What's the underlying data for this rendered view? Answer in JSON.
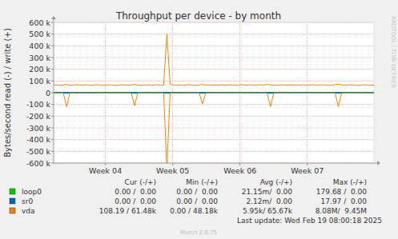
{
  "chart_data": {
    "type": "line",
    "title": "Throughput per device - by month",
    "y_label": "Bytes/second read (-) / write (+)",
    "side_text": "RRDTOOL / TOBI OETIKER",
    "last_update": "Last update: Wed Feb 19 08:00:18 2025",
    "footer": "Munin 2.0.75",
    "grid": true,
    "legend": "bottom",
    "legend_headers": [
      "Cur (-/+)",
      "Min (-/+)",
      "Avg (-/+)",
      "Max (-/+)"
    ],
    "xlim": [
      0,
      99
    ],
    "xticks": [
      {
        "value": 16,
        "label": "Week 04"
      },
      {
        "value": 36.8,
        "label": "Week 05"
      },
      {
        "value": 57.6,
        "label": "Week 06"
      },
      {
        "value": 78.4,
        "label": "Week 07"
      }
    ],
    "ylim": [
      -600000,
      600000
    ],
    "yticks": [
      {
        "value": 600000,
        "label": "600 k"
      },
      {
        "value": 500000,
        "label": "500 k"
      },
      {
        "value": 400000,
        "label": "400 k"
      },
      {
        "value": 300000,
        "label": "300 k"
      },
      {
        "value": 200000,
        "label": "200 k"
      },
      {
        "value": 100000,
        "label": "100 k"
      },
      0,
      {
        "value": -100000,
        "label": "-100 k"
      },
      {
        "value": -200000,
        "label": "-200 k"
      },
      {
        "value": -300000,
        "label": "-300 k"
      },
      {
        "value": -400000,
        "label": "-400 k"
      },
      {
        "value": -500000,
        "label": "-500 k"
      },
      {
        "value": -600000,
        "label": "-600 k"
      }
    ],
    "x": [
      0,
      1,
      2,
      3,
      4,
      5,
      6,
      7,
      8,
      9,
      10,
      11,
      12,
      13,
      14,
      15,
      16,
      17,
      18,
      19,
      20,
      21,
      22,
      23,
      24,
      25,
      26,
      27,
      28,
      29,
      30,
      31,
      32,
      33,
      34,
      35,
      36,
      37,
      38,
      39,
      40,
      41,
      42,
      43,
      44,
      45,
      46,
      47,
      48,
      49,
      50,
      51,
      52,
      53,
      54,
      55,
      56,
      57,
      58,
      59,
      60,
      61,
      62,
      63,
      64,
      65,
      66,
      67,
      68,
      69,
      70,
      71,
      72,
      73,
      74,
      75,
      76,
      77,
      78,
      79,
      80,
      81,
      82,
      83,
      84,
      85,
      86,
      87,
      88,
      89,
      90,
      91,
      92,
      93,
      94,
      95,
      96,
      97,
      98,
      99
    ],
    "series": [
      {
        "name": "loop0",
        "color": "#00cc00",
        "stats": [
          "0.00 /  0.00",
          "0.00 /  0.00",
          "21.15m/  0.00",
          "179.68 /  0.00"
        ],
        "values": [
          0,
          0,
          0,
          0,
          0,
          0,
          0,
          0,
          0,
          0,
          0,
          0,
          0,
          0,
          0,
          0,
          0,
          0,
          0,
          0,
          0,
          0,
          0,
          0,
          0,
          0,
          0,
          0,
          0,
          0,
          0,
          0,
          0,
          0,
          0,
          0,
          0,
          0,
          0,
          0,
          0,
          0,
          0,
          0,
          0,
          0,
          0,
          0,
          0,
          0,
          0,
          0,
          0,
          0,
          0,
          0,
          0,
          0,
          0,
          0,
          0,
          0,
          0,
          0,
          0,
          0,
          0,
          0,
          0,
          0,
          0,
          0,
          0,
          0,
          0,
          0,
          0,
          0,
          0,
          0,
          0,
          0,
          0,
          0,
          0,
          0,
          0,
          0,
          0,
          0,
          0,
          0,
          0,
          0,
          0,
          0,
          0,
          0,
          0,
          0
        ],
        "read_values": [
          0,
          0,
          0,
          0,
          0,
          0,
          0,
          0,
          0,
          0,
          0,
          0,
          0,
          0,
          0,
          0,
          0,
          0,
          0,
          0,
          0,
          0,
          0,
          0,
          0,
          0,
          0,
          0,
          0,
          0,
          0,
          0,
          0,
          0,
          0,
          0,
          0,
          0,
          0,
          0,
          0,
          0,
          0,
          0,
          0,
          0,
          0,
          0,
          0,
          0,
          0,
          0,
          0,
          0,
          0,
          0,
          0,
          0,
          0,
          0,
          0,
          0,
          0,
          0,
          0,
          0,
          0,
          0,
          0,
          0,
          0,
          0,
          0,
          0,
          0,
          0,
          0,
          0,
          0,
          0,
          0,
          0,
          0,
          0,
          0,
          0,
          0,
          0,
          0,
          0,
          0,
          0,
          0,
          0,
          0,
          0,
          0,
          0,
          0,
          0
        ]
      },
      {
        "name": "sr0",
        "color": "#0066b3",
        "stats": [
          "0.00 /  0.00",
          "0.00 /  0.00",
          "2.12m/  0.00",
          "17.97 /  0.00"
        ],
        "values": [
          0,
          0,
          0,
          0,
          0,
          0,
          0,
          0,
          0,
          0,
          0,
          0,
          0,
          0,
          0,
          0,
          0,
          0,
          0,
          0,
          0,
          0,
          0,
          0,
          0,
          0,
          0,
          0,
          0,
          0,
          0,
          0,
          0,
          0,
          0,
          0,
          0,
          0,
          0,
          0,
          0,
          0,
          0,
          0,
          0,
          0,
          0,
          0,
          0,
          0,
          0,
          0,
          0,
          0,
          0,
          0,
          0,
          0,
          0,
          0,
          0,
          0,
          0,
          0,
          0,
          0,
          0,
          0,
          0,
          0,
          0,
          0,
          0,
          0,
          0,
          0,
          0,
          0,
          0,
          0,
          0,
          0,
          0,
          0,
          0,
          0,
          0,
          0,
          0,
          0,
          0,
          0,
          0,
          0,
          0,
          0,
          0,
          0,
          0,
          0
        ],
        "read_values": [
          0,
          0,
          0,
          0,
          0,
          0,
          0,
          0,
          0,
          0,
          0,
          0,
          0,
          0,
          0,
          0,
          0,
          0,
          0,
          0,
          0,
          0,
          0,
          0,
          0,
          0,
          0,
          0,
          0,
          0,
          0,
          0,
          0,
          0,
          0,
          0,
          0,
          0,
          0,
          0,
          0,
          0,
          0,
          0,
          0,
          0,
          0,
          0,
          0,
          0,
          0,
          0,
          0,
          0,
          0,
          0,
          0,
          0,
          0,
          0,
          0,
          0,
          0,
          0,
          0,
          0,
          0,
          0,
          0,
          0,
          0,
          0,
          0,
          0,
          0,
          0,
          0,
          0,
          0,
          0,
          0,
          0,
          0,
          0,
          0,
          0,
          0,
          0,
          0,
          0,
          0,
          0,
          0,
          0,
          0,
          0,
          0,
          0,
          0,
          0
        ]
      },
      {
        "name": "vda",
        "color": "#ff8000",
        "stats": [
          "108.19 / 61.48k",
          "0.00 / 48.18k",
          "5.95k/ 65.67k",
          "8.08M/  9.45M"
        ],
        "values": [
          65000,
          67000,
          64000,
          66000,
          70000,
          63000,
          65000,
          68000,
          66000,
          64000,
          67000,
          65000,
          63000,
          69000,
          66000,
          64000,
          65000,
          67000,
          66000,
          62000,
          65000,
          68000,
          66000,
          64000,
          67000,
          71000,
          65000,
          63000,
          66000,
          67000,
          64000,
          65000,
          68000,
          66000,
          64000,
          500000,
          72000,
          66000,
          65000,
          67000,
          64000,
          66000,
          69000,
          65000,
          63000,
          66000,
          70000,
          65000,
          67000,
          64000,
          66000,
          65000,
          68000,
          63000,
          66000,
          67000,
          65000,
          64000,
          69000,
          66000,
          65000,
          67000,
          64000,
          66000,
          68000,
          65000,
          72000,
          66000,
          64000,
          65000,
          67000,
          66000,
          63000,
          68000,
          65000,
          66000,
          64000,
          67000,
          65000,
          66000,
          69000,
          64000,
          65000,
          67000,
          66000,
          63000,
          65000,
          68000,
          73000,
          66000,
          64000,
          65000,
          67000,
          66000,
          62000,
          65000,
          68000,
          66000,
          64000,
          65000
        ],
        "read_values": [
          -3000,
          -2000,
          -4000,
          -3000,
          -120000,
          -3000,
          -2000,
          -5000,
          -3000,
          -2000,
          -3000,
          -4000,
          -2000,
          -3000,
          -3000,
          -2000,
          -4000,
          -3000,
          -2000,
          -3000,
          -4000,
          -3000,
          -2000,
          -3000,
          -5000,
          -110000,
          -3000,
          -2000,
          -3000,
          -4000,
          -3000,
          -2000,
          -3000,
          -4000,
          -3000,
          -650000,
          -4000,
          -3000,
          -2000,
          -3000,
          -3000,
          -4000,
          -2000,
          -3000,
          -3000,
          -2000,
          -95000,
          -3000,
          -4000,
          -2000,
          -3000,
          -3000,
          -2000,
          -4000,
          -3000,
          -3000,
          -2000,
          -3000,
          -4000,
          -3000,
          -2000,
          -3000,
          -3000,
          -4000,
          -2000,
          -3000,
          -5000,
          -120000,
          -3000,
          -2000,
          -3000,
          -4000,
          -3000,
          -2000,
          -3000,
          -3000,
          -4000,
          -2000,
          -3000,
          -3000,
          -2000,
          -4000,
          -3000,
          -3000,
          -2000,
          -3000,
          -4000,
          -3000,
          -120000,
          -3000,
          -2000,
          -3000,
          -4000,
          -3000,
          -3000,
          -2000,
          -3000,
          -4000,
          -3000,
          -2000
        ]
      }
    ]
  }
}
